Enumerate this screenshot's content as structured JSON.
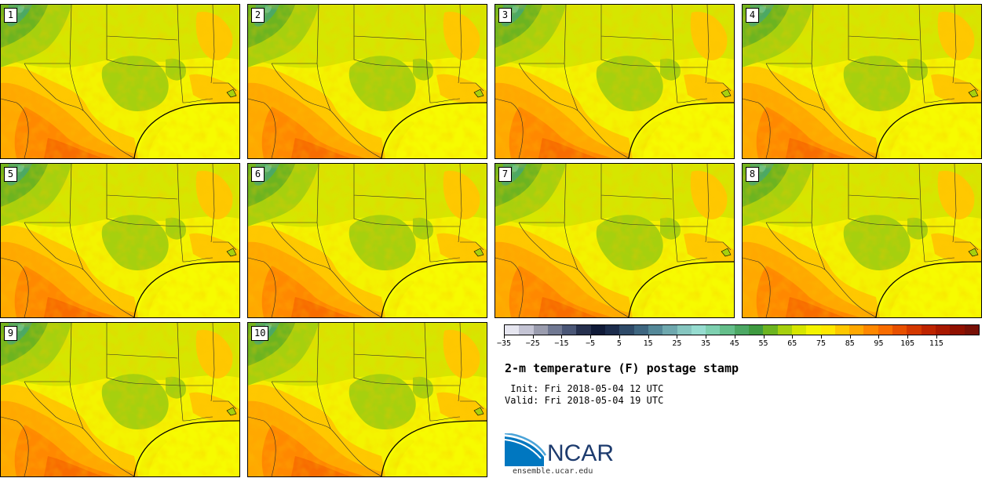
{
  "panels": [
    {
      "label": "1"
    },
    {
      "label": "2"
    },
    {
      "label": "3"
    },
    {
      "label": "4"
    },
    {
      "label": "5"
    },
    {
      "label": "6"
    },
    {
      "label": "7"
    },
    {
      "label": "8"
    },
    {
      "label": "9"
    },
    {
      "label": "10"
    }
  ],
  "colorbar": {
    "colors": [
      "#e6e6f0",
      "#c4c4d4",
      "#9a9cae",
      "#707892",
      "#4a5676",
      "#26304e",
      "#101a38",
      "#1c2c4c",
      "#2e4a68",
      "#3e6680",
      "#548898",
      "#6ea8ae",
      "#86c6c0",
      "#96dcd0",
      "#7ed0b0",
      "#64be8a",
      "#4ca864",
      "#3e9a40",
      "#6cb420",
      "#a6d00e",
      "#d6e600",
      "#f4f400",
      "#ffe800",
      "#ffc800",
      "#ffa800",
      "#ff8800",
      "#f86c00",
      "#e85000",
      "#d43800",
      "#be2400",
      "#a81800",
      "#901000",
      "#781006"
    ],
    "ticks": [
      "−35",
      "−25",
      "−15",
      "−5",
      "5",
      "15",
      "25",
      "35",
      "45",
      "55",
      "65",
      "75",
      "85",
      "95",
      "105",
      "115"
    ]
  },
  "title": "2-m temperature (F) postage stamp",
  "init": " Init: Fri 2018-05-04 12 UTC",
  "valid": "Valid: Fri 2018-05-04 19 UTC",
  "logo": {
    "text": "NCAR",
    "site": "ensemble.ucar.edu"
  }
}
